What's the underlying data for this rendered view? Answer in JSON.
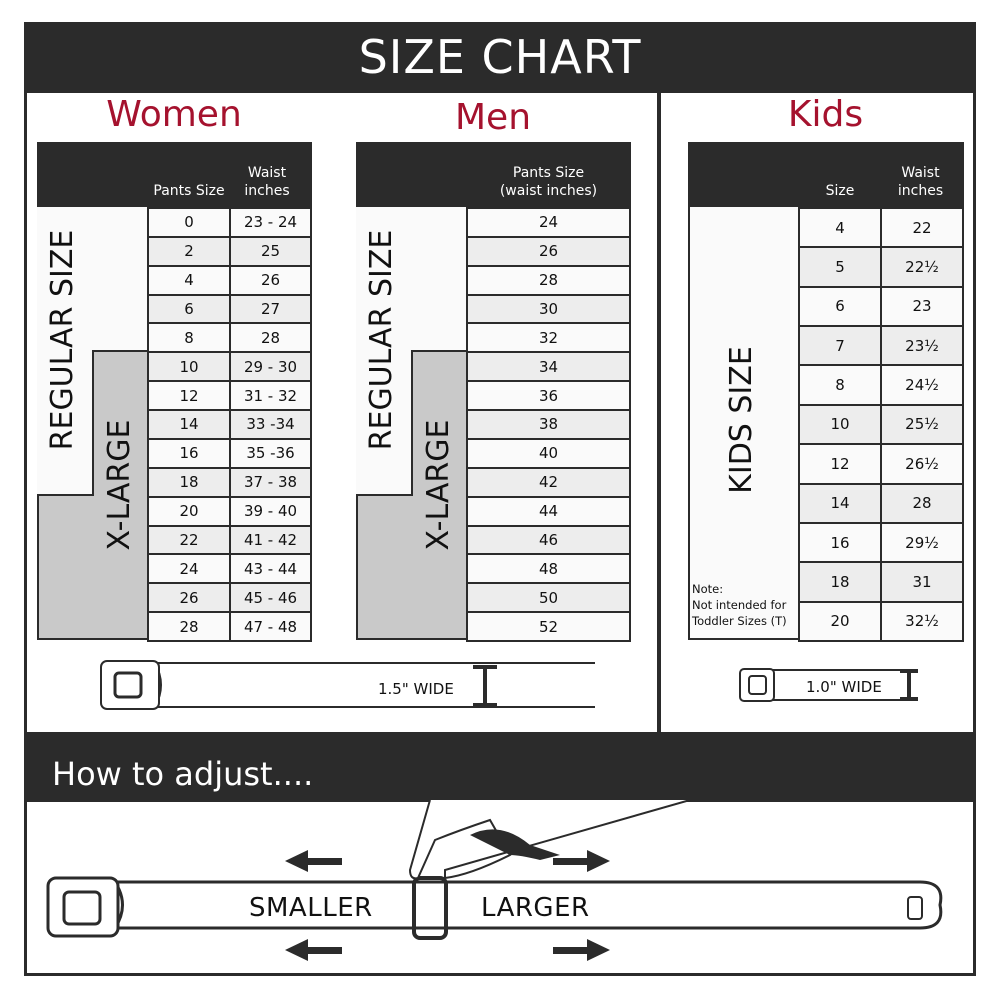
{
  "title": "SIZE CHART",
  "women": {
    "title": "Women",
    "headers": {
      "pants": "Pants Size",
      "waist": "Waist inches"
    },
    "regular_label": "REGULAR SIZE",
    "xlarge_label": "X-LARGE",
    "rows": [
      [
        "0",
        "23 - 24"
      ],
      [
        "2",
        "25"
      ],
      [
        "4",
        "26"
      ],
      [
        "6",
        "27"
      ],
      [
        "8",
        "28"
      ],
      [
        "10",
        "29 - 30"
      ],
      [
        "12",
        "31 - 32"
      ],
      [
        "14",
        "33 -34"
      ],
      [
        "16",
        "35 -36"
      ],
      [
        "18",
        "37 - 38"
      ],
      [
        "20",
        "39 - 40"
      ],
      [
        "22",
        "41 - 42"
      ],
      [
        "24",
        "43 - 44"
      ],
      [
        "26",
        "45 - 46"
      ],
      [
        "28",
        "47 - 48"
      ]
    ],
    "belt_width": "1.5\" WIDE"
  },
  "men": {
    "title": "Men",
    "headers": {
      "pants": "Pants Size (waist inches)"
    },
    "regular_label": "REGULAR SIZE",
    "xlarge_label": "X-LARGE",
    "rows": [
      "24",
      "26",
      "28",
      "30",
      "32",
      "34",
      "36",
      "38",
      "40",
      "42",
      "44",
      "46",
      "48",
      "50",
      "52"
    ]
  },
  "kids": {
    "title": "Kids",
    "headers": {
      "size": "Size",
      "waist": "Waist inches"
    },
    "label": "KIDS SIZE",
    "rows": [
      [
        "4",
        "22"
      ],
      [
        "5",
        "22½"
      ],
      [
        "6",
        "23"
      ],
      [
        "7",
        "23½"
      ],
      [
        "8",
        "24½"
      ],
      [
        "10",
        "25½"
      ],
      [
        "12",
        "26½"
      ],
      [
        "14",
        "28"
      ],
      [
        "16",
        "29½"
      ],
      [
        "18",
        "31"
      ],
      [
        "20",
        "32½"
      ]
    ],
    "note_title": "Note:",
    "note_line1": "Not intended for",
    "note_line2": "Toddler Sizes (T)",
    "belt_width": "1.0\" WIDE"
  },
  "adjust": {
    "title": "How to adjust....",
    "smaller": "SMALLER",
    "larger": "LARGER"
  },
  "colors": {
    "dark": "#2b2b2b",
    "accent": "#a5122e",
    "xlarge_gray": "#c9c9c9",
    "row_alt": "#ededed"
  }
}
